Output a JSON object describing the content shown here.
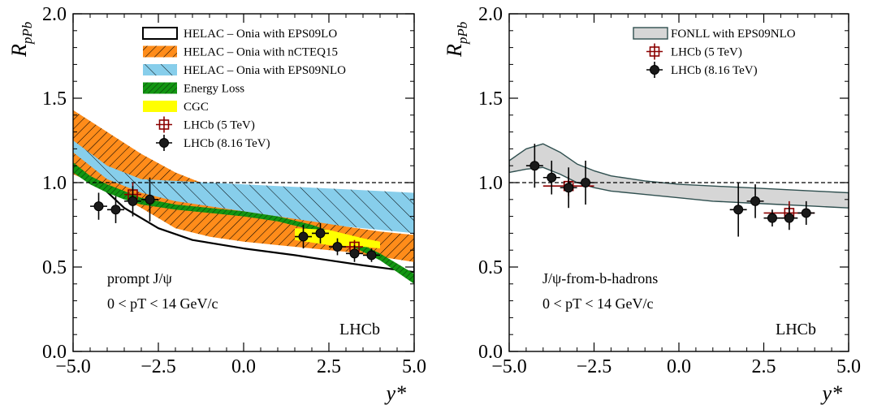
{
  "chart_data": [
    {
      "type": "line",
      "panel": "left",
      "ylabel": "R_pPb",
      "ylabel_main": "R",
      "ylabel_sub": "pPb",
      "xlabel": "y*",
      "xlim": [
        -5.0,
        5.0
      ],
      "ylim": [
        0.0,
        2.0
      ],
      "x_ticks": [
        "−5.0",
        "−2.5",
        "0.0",
        "2.5",
        "5.0"
      ],
      "y_ticks": [
        "0.0",
        "0.5",
        "1.0",
        "1.5",
        "2.0"
      ],
      "reference_line": 1.0,
      "annotation_line1": "prompt J/ψ",
      "annotation_line2": "0 < pT < 14 GeV/c",
      "experiment_label": "LHCb",
      "legend": [
        "HELAC – Onia with EPS09LO",
        "HELAC – Onia with nCTEQ15",
        "HELAC – Onia with EPS09NLO",
        "Energy Loss",
        "CGC",
        "LHCb (5 TeV)",
        "LHCb (8.16 TeV)"
      ],
      "bands": [
        {
          "style": "white band, black outline",
          "x": [
            -4.4,
            -3.5,
            -2.5,
            -1.5,
            0,
            1.5,
            2.5,
            3.5,
            5.0
          ],
          "upper": [
            1.04,
            1.02,
            1.0,
            0.99,
            0.97,
            0.96,
            0.95,
            0.94,
            0.93
          ],
          "lower": [
            1.02,
            0.85,
            0.73,
            0.66,
            0.61,
            0.57,
            0.54,
            0.51,
            0.47
          ]
        },
        {
          "style": "orange hatched",
          "x": [
            -5.0,
            -4.0,
            -3.0,
            -2.0,
            -1.0,
            0.0,
            1.0,
            2.0,
            3.0,
            4.0,
            5.0
          ],
          "upper": [
            1.43,
            1.3,
            1.17,
            1.06,
            0.98,
            0.93,
            0.88,
            0.81,
            0.74,
            0.71,
            0.69
          ],
          "lower": [
            1.05,
            0.96,
            0.85,
            0.73,
            0.68,
            0.65,
            0.63,
            0.61,
            0.59,
            0.56,
            0.53
          ]
        },
        {
          "style": "light blue hatched",
          "x": [
            -5.0,
            -4.0,
            -3.0,
            -2.0,
            -1.0,
            0.0,
            1.0,
            2.0,
            3.0,
            4.0,
            5.0
          ],
          "upper": [
            1.25,
            1.1,
            1.02,
            1.01,
            1.0,
            0.99,
            0.98,
            0.97,
            0.96,
            0.95,
            0.94
          ],
          "lower": [
            1.18,
            1.02,
            0.94,
            0.89,
            0.86,
            0.83,
            0.8,
            0.77,
            0.74,
            0.72,
            0.7
          ]
        },
        {
          "style": "green hatched",
          "x": [
            -5.0,
            -4.5,
            -4.0,
            -3.5,
            -3.0,
            -2.0,
            -1.0,
            0.0,
            1.0,
            2.0,
            3.0,
            3.5,
            4.0,
            4.5,
            5.0
          ],
          "upper": [
            1.12,
            1.04,
            0.99,
            0.95,
            0.91,
            0.87,
            0.85,
            0.83,
            0.8,
            0.75,
            0.68,
            0.63,
            0.58,
            0.52,
            0.46
          ],
          "lower": [
            1.06,
            0.99,
            0.94,
            0.9,
            0.87,
            0.84,
            0.82,
            0.8,
            0.77,
            0.72,
            0.64,
            0.59,
            0.54,
            0.47,
            0.4
          ]
        },
        {
          "style": "yellow",
          "x": [
            1.5,
            2.5,
            3.5,
            4.0
          ],
          "upper": [
            0.73,
            0.72,
            0.67,
            0.65
          ],
          "lower": [
            0.66,
            0.63,
            0.62,
            0.61
          ]
        }
      ],
      "series": [
        {
          "name": "LHCb (5 TeV)",
          "marker": "open red square with cross",
          "points": [
            {
              "x": -3.25,
              "y": 0.93,
              "xerr": 0.25,
              "yerr": 0.07
            },
            {
              "x": 3.25,
              "y": 0.62,
              "xerr": 0.25,
              "yerr": 0.04
            }
          ]
        },
        {
          "name": "LHCb (8.16 TeV)",
          "marker": "filled black circle",
          "points": [
            {
              "x": -4.25,
              "y": 0.86,
              "xerr": 0.25,
              "yerr": 0.08
            },
            {
              "x": -3.75,
              "y": 0.84,
              "xerr": 0.25,
              "yerr": 0.08
            },
            {
              "x": -3.25,
              "y": 0.89,
              "xerr": 0.25,
              "yerr": 0.09
            },
            {
              "x": -2.75,
              "y": 0.9,
              "xerr": 0.25,
              "yerr": 0.13
            },
            {
              "x": 1.75,
              "y": 0.68,
              "xerr": 0.25,
              "yerr": 0.07
            },
            {
              "x": 2.25,
              "y": 0.7,
              "xerr": 0.25,
              "yerr": 0.06
            },
            {
              "x": 2.75,
              "y": 0.62,
              "xerr": 0.25,
              "yerr": 0.05
            },
            {
              "x": 3.25,
              "y": 0.58,
              "xerr": 0.25,
              "yerr": 0.05
            },
            {
              "x": 3.75,
              "y": 0.57,
              "xerr": 0.25,
              "yerr": 0.04
            }
          ]
        }
      ]
    },
    {
      "type": "line",
      "panel": "right",
      "ylabel": "R_pPb",
      "ylabel_main": "R",
      "ylabel_sub": "pPb",
      "xlabel": "y*",
      "xlim": [
        -5.0,
        5.0
      ],
      "ylim": [
        0.0,
        2.0
      ],
      "x_ticks": [
        "−5.0",
        "−2.5",
        "0.0",
        "2.5",
        "5.0"
      ],
      "y_ticks": [
        "0.0",
        "0.5",
        "1.0",
        "1.5",
        "2.0"
      ],
      "reference_line": 1.0,
      "annotation_line1": "J/ψ-from-b-hadrons",
      "annotation_line2": "0 < pT < 14 GeV/c",
      "experiment_label": "LHCb",
      "legend": [
        "FONLL with EPS09NLO",
        "LHCb (5 TeV)",
        "LHCb (8.16 TeV)"
      ],
      "bands": [
        {
          "style": "grey band, dark outline",
          "x": [
            -5.0,
            -4.5,
            -4.0,
            -3.5,
            -3.0,
            -2.5,
            -2.0,
            -1.0,
            0.0,
            1.0,
            2.0,
            3.0,
            4.0,
            5.0
          ],
          "upper": [
            1.13,
            1.2,
            1.23,
            1.18,
            1.11,
            1.07,
            1.04,
            1.01,
            0.99,
            0.98,
            0.97,
            0.96,
            0.95,
            0.94
          ],
          "lower": [
            1.06,
            1.08,
            1.09,
            1.05,
            1.0,
            0.97,
            0.95,
            0.93,
            0.91,
            0.89,
            0.88,
            0.87,
            0.86,
            0.85
          ]
        }
      ],
      "series": [
        {
          "name": "LHCb (5 TeV)",
          "marker": "open red square with cross",
          "points": [
            {
              "x": -3.25,
              "y": 0.98,
              "xerr": 0.75,
              "yerr": 0.06
            },
            {
              "x": 3.25,
              "y": 0.82,
              "xerr": 0.75,
              "yerr": 0.07
            }
          ]
        },
        {
          "name": "LHCb (8.16 TeV)",
          "marker": "filled black circle",
          "points": [
            {
              "x": -4.25,
              "y": 1.1,
              "xerr": 0.25,
              "yerr": 0.13
            },
            {
              "x": -3.75,
              "y": 1.03,
              "xerr": 0.25,
              "yerr": 0.1
            },
            {
              "x": -3.25,
              "y": 0.97,
              "xerr": 0.25,
              "yerr": 0.12
            },
            {
              "x": -2.75,
              "y": 1.0,
              "xerr": 0.25,
              "yerr": 0.13
            },
            {
              "x": 1.75,
              "y": 0.84,
              "xerr": 0.25,
              "yerr": 0.16
            },
            {
              "x": 2.25,
              "y": 0.89,
              "xerr": 0.25,
              "yerr": 0.1
            },
            {
              "x": 2.75,
              "y": 0.79,
              "xerr": 0.25,
              "yerr": 0.05
            },
            {
              "x": 3.25,
              "y": 0.79,
              "xerr": 0.25,
              "yerr": 0.07
            },
            {
              "x": 3.75,
              "y": 0.82,
              "xerr": 0.25,
              "yerr": 0.07
            }
          ]
        }
      ]
    }
  ]
}
